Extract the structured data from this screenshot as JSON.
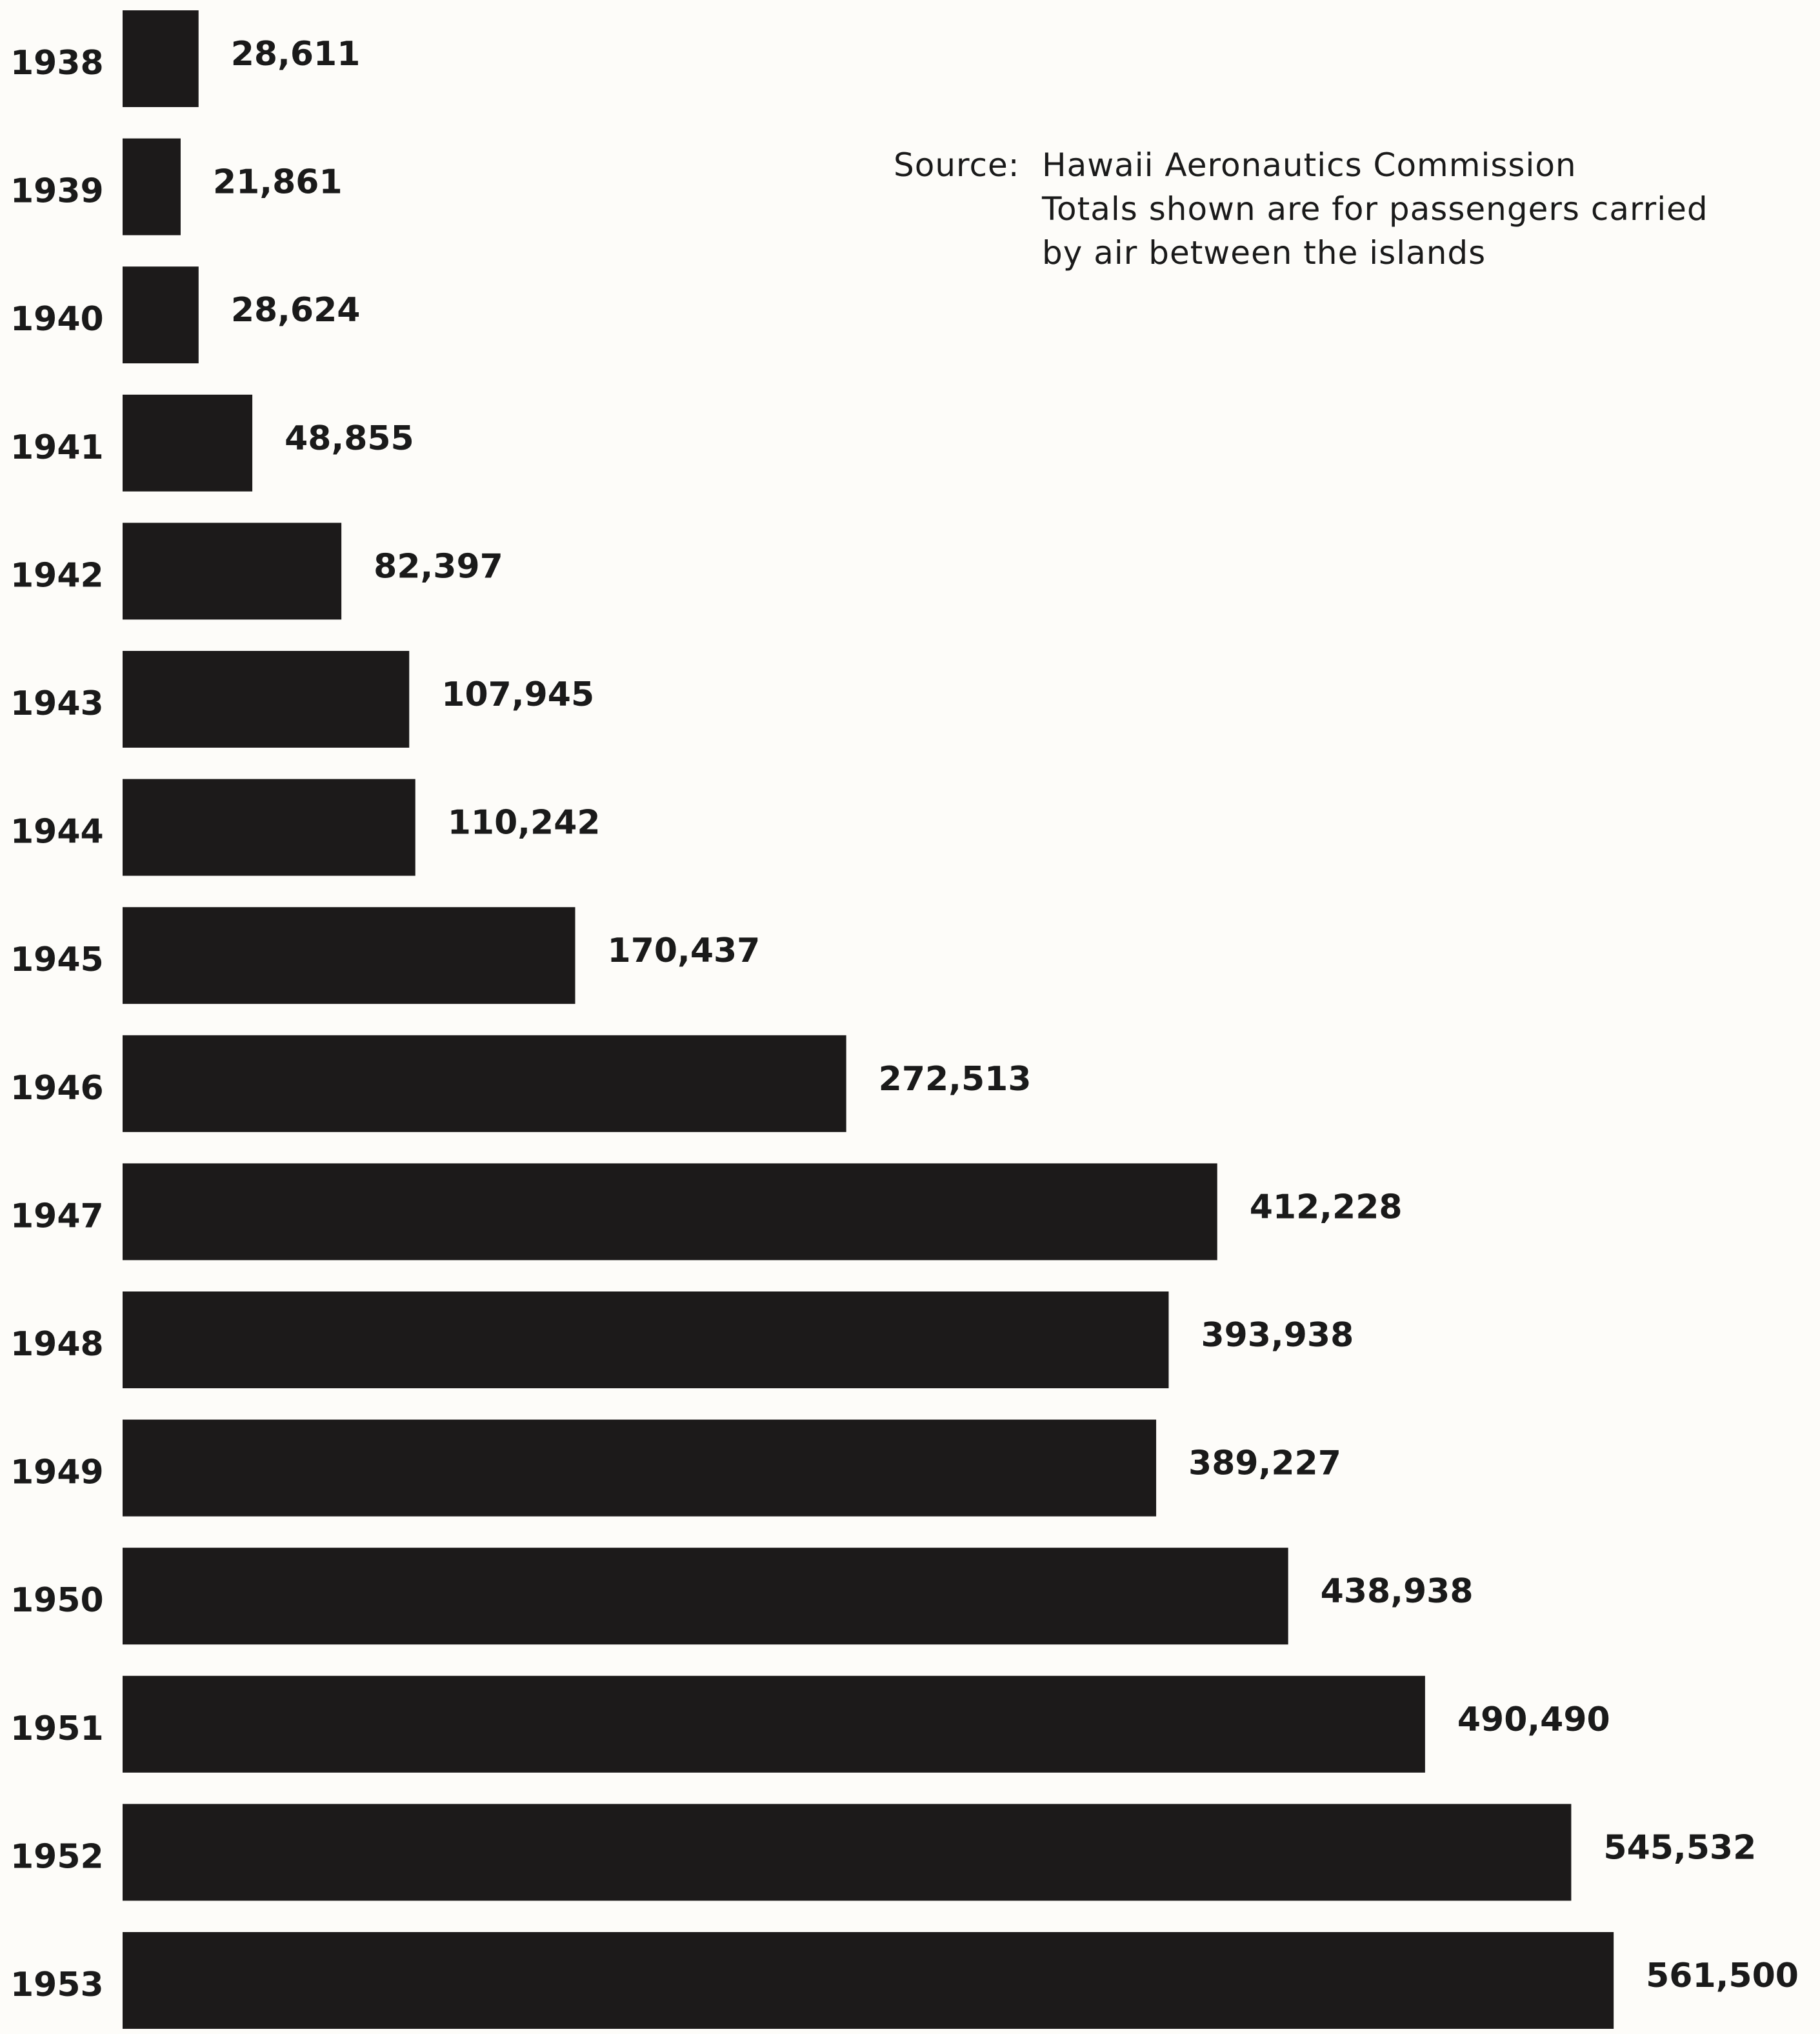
{
  "source_note": {
    "prefix": "Source:",
    "line1": "Hawaii Aeronautics Commission",
    "line2": "Totals shown are for passengers carried",
    "line3": "by air between the islands"
  },
  "colors": {
    "bar": "#1c1a1a",
    "text": "#1a1a1a",
    "background": "#fdfcf9"
  },
  "chart_data": {
    "type": "bar",
    "orientation": "horizontal",
    "categories": [
      "1938",
      "1939",
      "1940",
      "1941",
      "1942",
      "1943",
      "1944",
      "1945",
      "1946",
      "1947",
      "1948",
      "1949",
      "1950",
      "1951",
      "1952",
      "1953"
    ],
    "values": [
      28611,
      21861,
      28624,
      48855,
      82397,
      107945,
      110242,
      170437,
      272513,
      412228,
      393938,
      389227,
      438938,
      490490,
      545532,
      561500
    ],
    "value_labels": [
      "28,611",
      "21,861",
      "28,624",
      "48,855",
      "82,397",
      "107,945",
      "110,242",
      "170,437",
      "272,513",
      "412,228",
      "393,938",
      "389,227",
      "438,938",
      "490,490",
      "545,532",
      "561,500"
    ],
    "title": "",
    "xlabel": "",
    "ylabel": "",
    "grid": false,
    "legend": "none"
  }
}
